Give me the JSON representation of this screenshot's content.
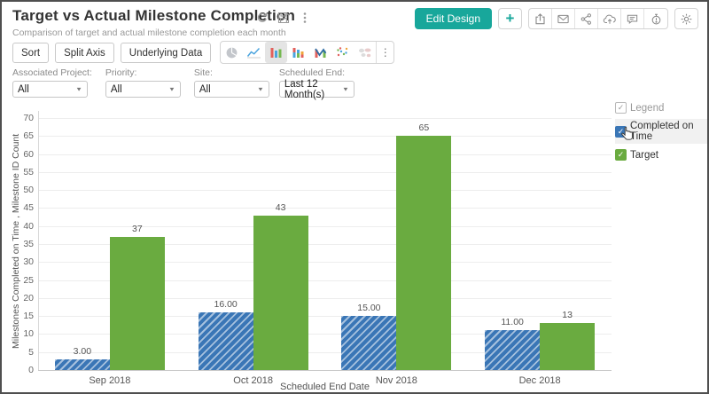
{
  "header": {
    "title": "Target vs Actual Milestone Completion",
    "subtitle": "Comparison of target and actual milestone completion each month",
    "title_icons": [
      "refresh-icon",
      "save-icon",
      "more-vertical-icon"
    ],
    "edit_design_label": "Edit Design",
    "add_label": "+",
    "action_icons": [
      "export-icon",
      "mail-icon",
      "share-icon",
      "cloud-upload-icon",
      "comment-icon",
      "alarm-icon",
      "gear-icon"
    ],
    "accent_color": "#18a79b"
  },
  "toolbar": {
    "sort_label": "Sort",
    "split_axis_label": "Split Axis",
    "underlying_data_label": "Underlying Data",
    "chart_type_icons": [
      "pie-chart-icon",
      "line-chart-icon",
      "bar-chart-icon",
      "stacked-bar-icon",
      "bar-trend-icon",
      "scatter-icon",
      "map-icon"
    ],
    "selected_chart_type": "bar-chart-icon",
    "more_label": "⋮"
  },
  "filters": [
    {
      "label": "Associated Project:",
      "value": "All"
    },
    {
      "label": "Priority:",
      "value": "All"
    },
    {
      "label": "Site:",
      "value": "All"
    },
    {
      "label": "Scheduled End:",
      "value": "Last 12 Month(s)"
    }
  ],
  "legend": {
    "header": "Legend",
    "items": [
      {
        "label": "Completed on Time",
        "color": "#3a76b6",
        "checked": true,
        "hovered": true
      },
      {
        "label": "Target",
        "color": "#6aab40",
        "checked": true,
        "hovered": false
      }
    ]
  },
  "chart_data": {
    "type": "bar",
    "categories": [
      "Sep 2018",
      "Oct 2018",
      "Nov 2018",
      "Dec 2018"
    ],
    "series": [
      {
        "name": "Completed on Time",
        "color": "#3a76b6",
        "pattern": "diagonal-hatch",
        "values": [
          3,
          16,
          15,
          11
        ],
        "value_labels": [
          "3.00",
          "16.00",
          "15.00",
          "11.00"
        ]
      },
      {
        "name": "Target",
        "color": "#6aab40",
        "pattern": "solid",
        "values": [
          37,
          43,
          65,
          13
        ],
        "value_labels": [
          "37",
          "43",
          "65",
          "13"
        ]
      }
    ],
    "xlabel": "Scheduled End Date",
    "ylabel": "Milestones Completed on Time , Milestone ID Count",
    "ylim": [
      0,
      70
    ],
    "ytick_step": 5,
    "grid": true,
    "legend_position": "right"
  }
}
